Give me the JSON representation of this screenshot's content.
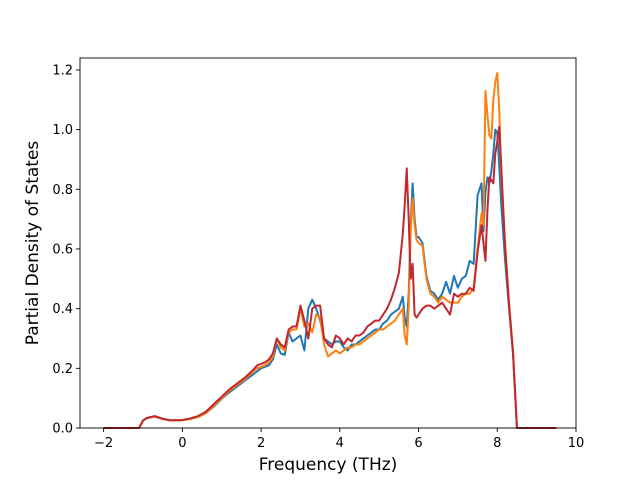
{
  "chart_data": {
    "type": "line",
    "title": "",
    "xlabel": "Frequency (THz)",
    "ylabel": "Partial Density of States",
    "xlim": [
      -2.6,
      10.0
    ],
    "ylim": [
      0.0,
      1.24
    ],
    "xticks": [
      -2,
      0,
      2,
      4,
      6,
      8,
      10
    ],
    "xtick_labels": [
      "−2",
      "0",
      "2",
      "4",
      "6",
      "8",
      "10"
    ],
    "yticks": [
      0.0,
      0.2,
      0.4,
      0.6,
      0.8,
      1.0,
      1.2
    ],
    "ytick_labels": [
      "0.0",
      "0.2",
      "0.4",
      "0.6",
      "0.8",
      "1.0",
      "1.2"
    ],
    "grid": false,
    "legend": "none",
    "series": [
      {
        "color": "#1f77b4",
        "x": [
          -2.0,
          -1.2,
          -1.1,
          -1.0,
          -0.9,
          -0.7,
          -0.5,
          -0.3,
          0.0,
          0.2,
          0.4,
          0.6,
          0.8,
          1.0,
          1.2,
          1.4,
          1.6,
          1.8,
          1.9,
          2.0,
          2.1,
          2.2,
          2.3,
          2.4,
          2.5,
          2.6,
          2.7,
          2.8,
          2.9,
          3.0,
          3.1,
          3.2,
          3.3,
          3.4,
          3.5,
          3.6,
          3.7,
          3.8,
          3.9,
          4.0,
          4.1,
          4.2,
          4.3,
          4.4,
          4.5,
          4.6,
          4.7,
          4.8,
          4.9,
          5.0,
          5.1,
          5.2,
          5.3,
          5.4,
          5.5,
          5.6,
          5.65,
          5.7,
          5.75,
          5.8,
          5.85,
          5.9,
          5.95,
          6.0,
          6.1,
          6.2,
          6.3,
          6.4,
          6.5,
          6.6,
          6.7,
          6.8,
          6.9,
          7.0,
          7.1,
          7.2,
          7.3,
          7.4,
          7.5,
          7.6,
          7.65,
          7.7,
          7.75,
          7.8,
          7.85,
          7.9,
          7.95,
          8.0,
          8.05,
          8.1,
          8.2,
          8.3,
          8.4,
          8.5,
          8.55,
          9.0,
          9.5
        ],
        "y": [
          0.0,
          0.0,
          0.0,
          0.025,
          0.033,
          0.038,
          0.03,
          0.025,
          0.026,
          0.03,
          0.037,
          0.05,
          0.072,
          0.098,
          0.12,
          0.14,
          0.16,
          0.18,
          0.19,
          0.2,
          0.205,
          0.21,
          0.23,
          0.28,
          0.25,
          0.245,
          0.32,
          0.29,
          0.3,
          0.31,
          0.26,
          0.4,
          0.43,
          0.4,
          0.36,
          0.3,
          0.29,
          0.28,
          0.29,
          0.29,
          0.27,
          0.26,
          0.28,
          0.28,
          0.29,
          0.3,
          0.31,
          0.32,
          0.33,
          0.33,
          0.35,
          0.36,
          0.38,
          0.39,
          0.4,
          0.44,
          0.37,
          0.34,
          0.45,
          0.68,
          0.82,
          0.7,
          0.64,
          0.64,
          0.62,
          0.51,
          0.46,
          0.45,
          0.43,
          0.45,
          0.49,
          0.45,
          0.51,
          0.47,
          0.5,
          0.51,
          0.56,
          0.55,
          0.78,
          0.82,
          0.66,
          0.79,
          0.84,
          0.82,
          0.86,
          0.92,
          1.0,
          0.99,
          0.88,
          0.75,
          0.56,
          0.4,
          0.25,
          0.0,
          0.0,
          0.0,
          0.0
        ]
      },
      {
        "color": "#ff7f0e",
        "x": [
          -2.0,
          -1.2,
          -1.1,
          -1.0,
          -0.9,
          -0.7,
          -0.5,
          -0.3,
          0.0,
          0.2,
          0.4,
          0.6,
          0.8,
          1.0,
          1.2,
          1.4,
          1.6,
          1.8,
          1.9,
          2.0,
          2.1,
          2.2,
          2.3,
          2.4,
          2.5,
          2.6,
          2.7,
          2.8,
          2.9,
          3.0,
          3.1,
          3.2,
          3.3,
          3.4,
          3.5,
          3.6,
          3.7,
          3.8,
          3.9,
          4.0,
          4.1,
          4.2,
          4.3,
          4.4,
          4.5,
          4.6,
          4.7,
          4.8,
          4.9,
          5.0,
          5.1,
          5.2,
          5.3,
          5.4,
          5.5,
          5.6,
          5.65,
          5.7,
          5.75,
          5.8,
          5.85,
          5.9,
          5.95,
          6.0,
          6.1,
          6.2,
          6.3,
          6.4,
          6.5,
          6.6,
          6.7,
          6.8,
          6.9,
          7.0,
          7.1,
          7.2,
          7.3,
          7.4,
          7.5,
          7.6,
          7.65,
          7.7,
          7.75,
          7.8,
          7.85,
          7.9,
          7.95,
          8.0,
          8.05,
          8.1,
          8.2,
          8.3,
          8.4,
          8.5,
          8.55,
          9.0,
          9.5
        ],
        "y": [
          0.0,
          0.0,
          0.0,
          0.025,
          0.033,
          0.038,
          0.03,
          0.025,
          0.026,
          0.03,
          0.037,
          0.05,
          0.075,
          0.1,
          0.125,
          0.145,
          0.165,
          0.19,
          0.2,
          0.205,
          0.21,
          0.22,
          0.24,
          0.3,
          0.27,
          0.26,
          0.32,
          0.33,
          0.33,
          0.4,
          0.34,
          0.35,
          0.32,
          0.38,
          0.37,
          0.28,
          0.24,
          0.25,
          0.26,
          0.25,
          0.26,
          0.27,
          0.27,
          0.28,
          0.28,
          0.29,
          0.3,
          0.31,
          0.32,
          0.33,
          0.33,
          0.34,
          0.35,
          0.36,
          0.38,
          0.4,
          0.31,
          0.28,
          0.4,
          0.66,
          0.77,
          0.68,
          0.63,
          0.62,
          0.61,
          0.5,
          0.45,
          0.44,
          0.42,
          0.44,
          0.43,
          0.42,
          0.42,
          0.42,
          0.44,
          0.45,
          0.45,
          0.47,
          0.6,
          0.72,
          0.68,
          1.13,
          1.05,
          0.98,
          0.97,
          1.1,
          1.16,
          1.19,
          1.07,
          0.85,
          0.62,
          0.42,
          0.26,
          0.0,
          0.0,
          0.0,
          0.0
        ]
      },
      {
        "color": "#c0282d",
        "x": [
          -2.0,
          -1.2,
          -1.1,
          -1.0,
          -0.9,
          -0.7,
          -0.5,
          -0.3,
          0.0,
          0.2,
          0.4,
          0.6,
          0.8,
          1.0,
          1.2,
          1.4,
          1.6,
          1.8,
          1.9,
          2.0,
          2.1,
          2.2,
          2.3,
          2.4,
          2.5,
          2.6,
          2.7,
          2.8,
          2.9,
          3.0,
          3.1,
          3.2,
          3.3,
          3.4,
          3.5,
          3.6,
          3.7,
          3.8,
          3.9,
          4.0,
          4.1,
          4.2,
          4.3,
          4.4,
          4.5,
          4.6,
          4.7,
          4.8,
          4.9,
          5.0,
          5.1,
          5.2,
          5.3,
          5.4,
          5.5,
          5.6,
          5.65,
          5.7,
          5.75,
          5.8,
          5.85,
          5.9,
          5.95,
          6.0,
          6.1,
          6.2,
          6.3,
          6.4,
          6.5,
          6.6,
          6.7,
          6.8,
          6.9,
          7.0,
          7.1,
          7.2,
          7.3,
          7.4,
          7.5,
          7.6,
          7.65,
          7.7,
          7.75,
          7.8,
          7.85,
          7.9,
          7.95,
          8.0,
          8.05,
          8.1,
          8.2,
          8.3,
          8.4,
          8.5,
          8.55,
          9.0,
          9.5
        ],
        "y": [
          0.0,
          0.0,
          0.0,
          0.025,
          0.034,
          0.04,
          0.031,
          0.026,
          0.027,
          0.032,
          0.04,
          0.055,
          0.08,
          0.105,
          0.13,
          0.15,
          0.17,
          0.195,
          0.21,
          0.215,
          0.22,
          0.23,
          0.25,
          0.3,
          0.28,
          0.27,
          0.33,
          0.34,
          0.34,
          0.41,
          0.36,
          0.3,
          0.4,
          0.41,
          0.41,
          0.3,
          0.28,
          0.27,
          0.31,
          0.3,
          0.28,
          0.3,
          0.29,
          0.31,
          0.31,
          0.32,
          0.34,
          0.35,
          0.36,
          0.36,
          0.38,
          0.4,
          0.43,
          0.47,
          0.52,
          0.65,
          0.75,
          0.87,
          0.7,
          0.5,
          0.55,
          0.38,
          0.37,
          0.38,
          0.4,
          0.41,
          0.41,
          0.4,
          0.41,
          0.42,
          0.4,
          0.38,
          0.45,
          0.44,
          0.45,
          0.45,
          0.47,
          0.46,
          0.59,
          0.68,
          0.62,
          0.56,
          0.73,
          0.84,
          0.83,
          0.82,
          0.92,
          0.96,
          1.01,
          0.88,
          0.6,
          0.41,
          0.25,
          0.0,
          0.0,
          0.0,
          0.0
        ]
      }
    ]
  }
}
